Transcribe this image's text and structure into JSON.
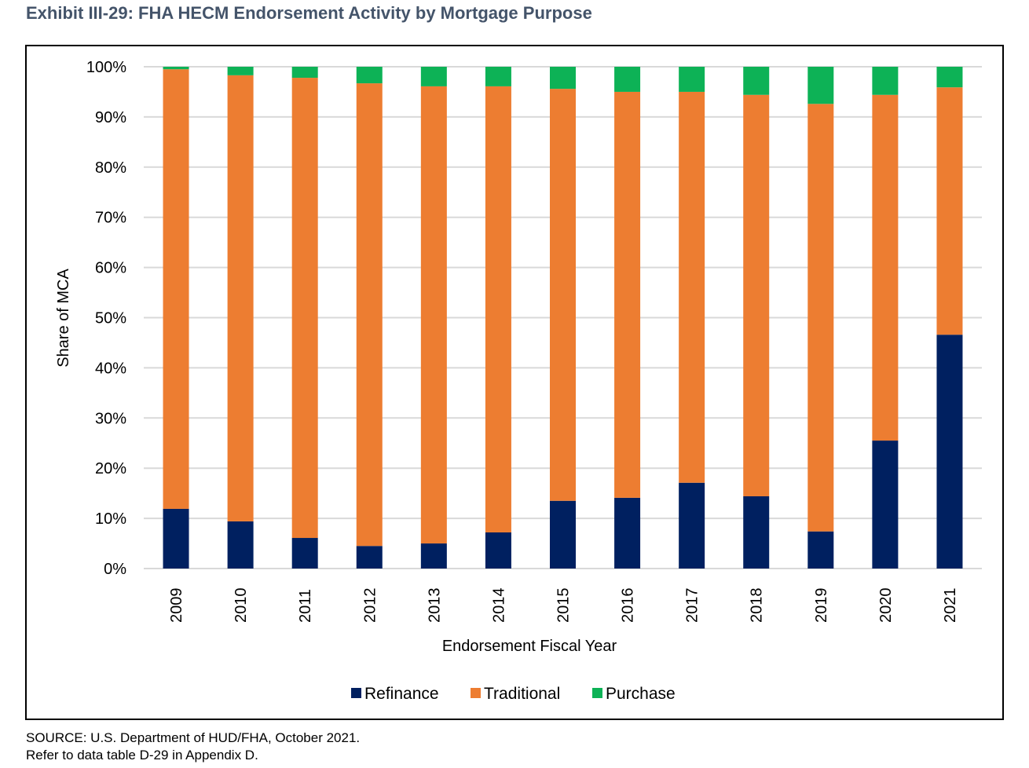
{
  "title": "Exhibit III-29: FHA HECM Endorsement Activity by Mortgage Purpose",
  "source_lines": [
    "SOURCE: U.S. Department of HUD/FHA, October 2021.",
    "Refer to data table D-29 in Appendix D."
  ],
  "chart_data": {
    "type": "bar",
    "stacked": true,
    "title": "Exhibit III-29: FHA HECM Endorsement Activity by Mortgage Purpose",
    "xlabel": "Endorsement Fiscal Year",
    "ylabel": "Share of MCA",
    "ylim": [
      0,
      100
    ],
    "yticks": [
      0,
      10,
      20,
      30,
      40,
      50,
      60,
      70,
      80,
      90,
      100
    ],
    "ytick_labels": [
      "0%",
      "10%",
      "20%",
      "30%",
      "40%",
      "50%",
      "60%",
      "70%",
      "80%",
      "90%",
      "100%"
    ],
    "grid": "horizontal",
    "legend_position": "bottom",
    "categories": [
      "2009",
      "2010",
      "2011",
      "2012",
      "2013",
      "2014",
      "2015",
      "2016",
      "2017",
      "2018",
      "2019",
      "2020",
      "2021"
    ],
    "series": [
      {
        "name": "Refinance",
        "color": "#002060",
        "values": [
          11.9,
          9.4,
          6.1,
          4.5,
          5.0,
          7.2,
          13.5,
          14.1,
          17.1,
          14.4,
          7.4,
          25.5,
          46.6
        ]
      },
      {
        "name": "Traditional",
        "color": "#ed7d31",
        "values": [
          87.6,
          88.9,
          91.7,
          92.2,
          91.1,
          88.9,
          82.1,
          80.9,
          77.9,
          80.0,
          85.2,
          68.9,
          49.3
        ]
      },
      {
        "name": "Purchase",
        "color": "#0db256",
        "values": [
          0.5,
          1.7,
          2.2,
          3.3,
          3.9,
          3.9,
          4.4,
          5.0,
          5.0,
          5.6,
          7.4,
          5.6,
          4.1
        ]
      }
    ]
  }
}
